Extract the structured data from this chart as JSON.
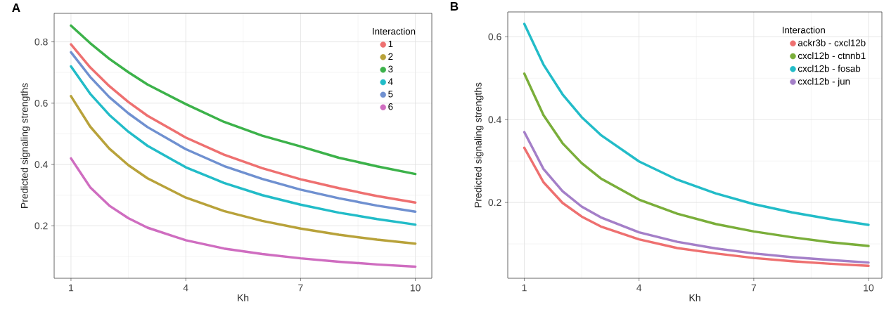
{
  "chart_data": [
    {
      "type": "line",
      "title": "A",
      "xlabel": "Kh",
      "ylabel": "Predicted signaling strengths",
      "legend_title": "Interaction",
      "legend": "top right",
      "grid": true,
      "xlim": [
        0.56,
        10.43
      ],
      "ylim": [
        0.029,
        0.893
      ],
      "xticks": [
        1,
        4,
        7,
        10
      ],
      "yticks": [
        0.2,
        0.4,
        0.6,
        0.8
      ],
      "x": [
        1,
        1.5,
        2,
        2.5,
        3,
        4,
        5,
        6,
        7,
        8,
        9,
        10
      ],
      "series": [
        {
          "name": "1",
          "color": "#ee7070",
          "values": [
            0.792,
            0.717,
            0.656,
            0.604,
            0.559,
            0.488,
            0.432,
            0.388,
            0.352,
            0.323,
            0.297,
            0.276
          ]
        },
        {
          "name": "2",
          "color": "#b8a23a",
          "values": [
            0.623,
            0.524,
            0.452,
            0.398,
            0.355,
            0.292,
            0.248,
            0.216,
            0.191,
            0.171,
            0.155,
            0.142
          ]
        },
        {
          "name": "3",
          "color": "#3cb24a",
          "values": [
            0.853,
            0.796,
            0.745,
            0.701,
            0.661,
            0.597,
            0.539,
            0.494,
            0.459,
            0.422,
            0.394,
            0.369
          ]
        },
        {
          "name": "4",
          "color": "#22bcc8",
          "values": [
            0.72,
            0.631,
            0.562,
            0.507,
            0.461,
            0.391,
            0.34,
            0.3,
            0.269,
            0.243,
            0.222,
            0.204
          ]
        },
        {
          "name": "5",
          "color": "#6f90d0",
          "values": [
            0.766,
            0.686,
            0.62,
            0.567,
            0.522,
            0.45,
            0.395,
            0.353,
            0.318,
            0.29,
            0.266,
            0.246
          ]
        },
        {
          "name": "6",
          "color": "#cf6dc0",
          "values": [
            0.42,
            0.326,
            0.266,
            0.225,
            0.194,
            0.153,
            0.126,
            0.108,
            0.094,
            0.083,
            0.074,
            0.067
          ]
        }
      ]
    },
    {
      "type": "line",
      "title": "B",
      "xlabel": "Kh",
      "ylabel": "Predicted signaling strengths",
      "legend_title": "Interaction",
      "legend": "top right",
      "grid": true,
      "xlim": [
        0.567,
        10.35
      ],
      "ylim": [
        0.017,
        0.66
      ],
      "xticks": [
        1,
        4,
        7,
        10
      ],
      "yticks": [
        0.2,
        0.4,
        0.6
      ],
      "x": [
        1,
        1.5,
        2,
        2.5,
        3,
        4,
        5,
        6,
        7,
        8,
        9,
        10
      ],
      "series": [
        {
          "name": "ackr3b - cxcl12b",
          "color": "#ee7070",
          "values": [
            0.332,
            0.249,
            0.199,
            0.166,
            0.142,
            0.111,
            0.09,
            0.077,
            0.066,
            0.058,
            0.052,
            0.047
          ]
        },
        {
          "name": "cxcl12b - ctnnb1",
          "color": "#7aae3a",
          "values": [
            0.511,
            0.411,
            0.343,
            0.295,
            0.258,
            0.207,
            0.173,
            0.148,
            0.13,
            0.116,
            0.104,
            0.095
          ]
        },
        {
          "name": "cxcl12b - fosab",
          "color": "#22bcc8",
          "values": [
            0.631,
            0.533,
            0.461,
            0.406,
            0.363,
            0.299,
            0.255,
            0.222,
            0.196,
            0.176,
            0.16,
            0.146
          ]
        },
        {
          "name": "cxcl12b - jun",
          "color": "#a47fc8",
          "values": [
            0.37,
            0.281,
            0.227,
            0.19,
            0.164,
            0.128,
            0.105,
            0.089,
            0.077,
            0.068,
            0.061,
            0.055
          ]
        }
      ]
    }
  ]
}
